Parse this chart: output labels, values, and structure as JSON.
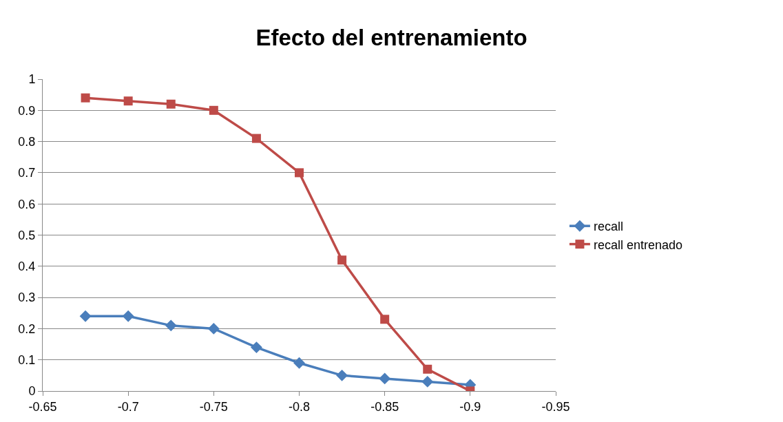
{
  "chart_data": {
    "type": "line",
    "title": "Efecto del entrenamiento",
    "x": [
      -0.675,
      -0.7,
      -0.725,
      -0.75,
      -0.775,
      -0.8,
      -0.825,
      -0.85,
      -0.875,
      -0.9
    ],
    "series": [
      {
        "name": "recall",
        "color": "#4a7ebb",
        "marker": "diamond",
        "values": [
          0.24,
          0.24,
          0.21,
          0.2,
          0.14,
          0.09,
          0.05,
          0.04,
          0.03,
          0.02
        ]
      },
      {
        "name": "recall entrenado",
        "color": "#be4b48",
        "marker": "square",
        "values": [
          0.94,
          0.93,
          0.92,
          0.9,
          0.81,
          0.7,
          0.42,
          0.23,
          0.07,
          0.0
        ]
      }
    ],
    "xlim": [
      -0.65,
      -0.95
    ],
    "xticks": [
      -0.65,
      -0.7,
      -0.75,
      -0.8,
      -0.85,
      -0.9,
      -0.95
    ],
    "ylim": [
      0,
      1
    ],
    "yticks": [
      0,
      0.1,
      0.2,
      0.3,
      0.4,
      0.5,
      0.6,
      0.7,
      0.8,
      0.9,
      1
    ],
    "grid": "y",
    "legend": "right",
    "line_style": "solid"
  }
}
